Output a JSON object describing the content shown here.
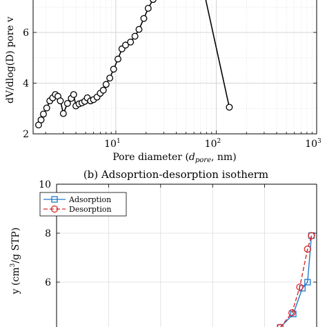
{
  "chart_data": [
    {
      "type": "line",
      "title": "",
      "xlabel_main": "Pore diameter (",
      "xlabel_sub": "pore",
      "xlabel_tail": ", nm)",
      "ylabel": "dV/dlog(D) pore v",
      "x_scale": "log",
      "xlim": [
        1.5,
        1000
      ],
      "ylim": [
        2,
        8
      ],
      "grid": true,
      "x_tick_labels": [
        {
          "base": "10",
          "exp": "1",
          "value": 10
        },
        {
          "base": "10",
          "exp": "2",
          "value": 100
        },
        {
          "base": "10",
          "exp": "3",
          "value": 1000
        }
      ],
      "y_tick_labels": [
        {
          "text": "2",
          "value": 2
        },
        {
          "text": "4",
          "value": 4
        },
        {
          "text": "6",
          "value": 6
        }
      ],
      "series": [
        {
          "color": "#000000",
          "marker": "circle",
          "x": [
            1.7,
            1.8,
            1.9,
            2.05,
            2.2,
            2.35,
            2.5,
            2.65,
            2.8,
            3.0,
            3.3,
            3.6,
            3.8,
            4.0,
            4.3,
            4.6,
            4.9,
            5.2,
            5.6,
            6.0,
            6.5,
            7.0,
            7.5,
            8.0,
            8.7,
            9.5,
            10.5,
            11.5,
            12.5,
            14.0,
            15.5,
            17.0,
            19.0,
            21.0,
            23.5,
            70.0,
            135.0
          ],
          "y": [
            2.35,
            2.55,
            2.78,
            3.02,
            3.3,
            3.42,
            3.55,
            3.48,
            3.3,
            2.8,
            3.2,
            3.4,
            3.55,
            3.1,
            3.18,
            3.22,
            3.28,
            3.42,
            3.3,
            3.35,
            3.45,
            3.6,
            3.72,
            3.95,
            4.2,
            4.55,
            4.95,
            5.35,
            5.5,
            5.62,
            5.85,
            6.12,
            6.55,
            6.95,
            7.3,
            8.2,
            3.05
          ]
        }
      ]
    },
    {
      "type": "line",
      "title": "(b) Adsoprtion-desorption isotherm",
      "ylabel": "y (cm",
      "ylabel_sup": "3",
      "ylabel_tail": "/g STP)",
      "ylim": [
        4,
        10
      ],
      "xlim": [
        0,
        1
      ],
      "grid": true,
      "y_tick_labels": [
        {
          "text": "10",
          "value": 10
        },
        {
          "text": "8",
          "value": 8
        },
        {
          "text": "6",
          "value": 6
        }
      ],
      "legend": "top-left",
      "series": [
        {
          "name": "Adsorption",
          "color": "#1f77c9",
          "marker": "square",
          "dash": "solid",
          "x": [
            0.86,
            0.91,
            0.945,
            0.965,
            0.98
          ],
          "y": [
            4.15,
            4.7,
            5.75,
            6.0,
            7.9
          ]
        },
        {
          "name": "Desorption",
          "color": "#d62728",
          "marker": "circle",
          "dash": "dashed",
          "x": [
            0.86,
            0.905,
            0.935,
            0.965,
            0.98
          ],
          "y": [
            4.15,
            4.75,
            5.8,
            7.35,
            7.9
          ]
        }
      ]
    }
  ]
}
